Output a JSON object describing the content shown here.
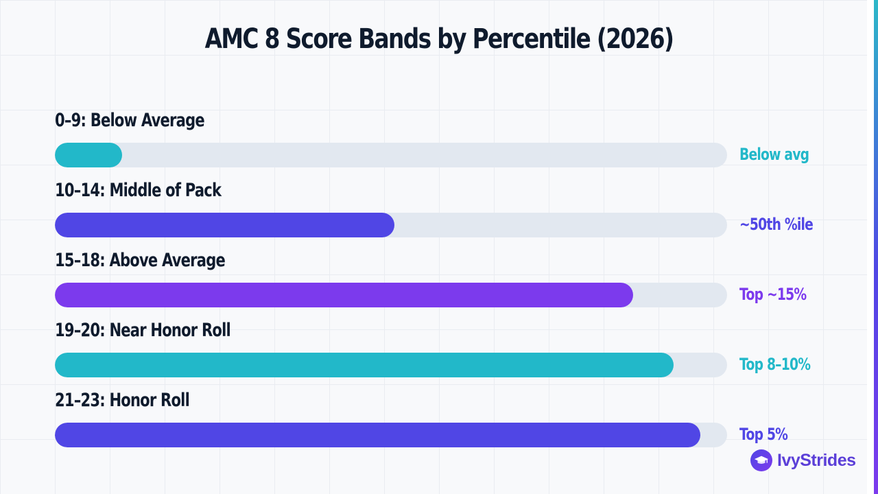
{
  "chart_data": {
    "type": "bar",
    "orientation": "horizontal",
    "title": "AMC 8 Score Bands by Percentile (2026)",
    "xlim": [
      0,
      100
    ],
    "grid": true,
    "categories": [
      "0–9: Below Average",
      "10–14: Middle of Pack",
      "15–18: Above Average",
      "19–20: Near Honor Roll",
      "21–23: Honor Roll"
    ],
    "values": [
      10,
      50.5,
      86,
      92,
      96
    ],
    "value_labels": [
      "Below avg",
      "~50th %ile",
      "Top ~15%",
      "Top 8–10%",
      "Top 5%"
    ],
    "colors": [
      "#22b8c9",
      "#5046e5",
      "#7c3aed",
      "#22b8c9",
      "#5046e5"
    ]
  },
  "brand": {
    "name": "IvyStrides",
    "icon": "graduation-cap-icon",
    "color": "#5b3fd8"
  }
}
